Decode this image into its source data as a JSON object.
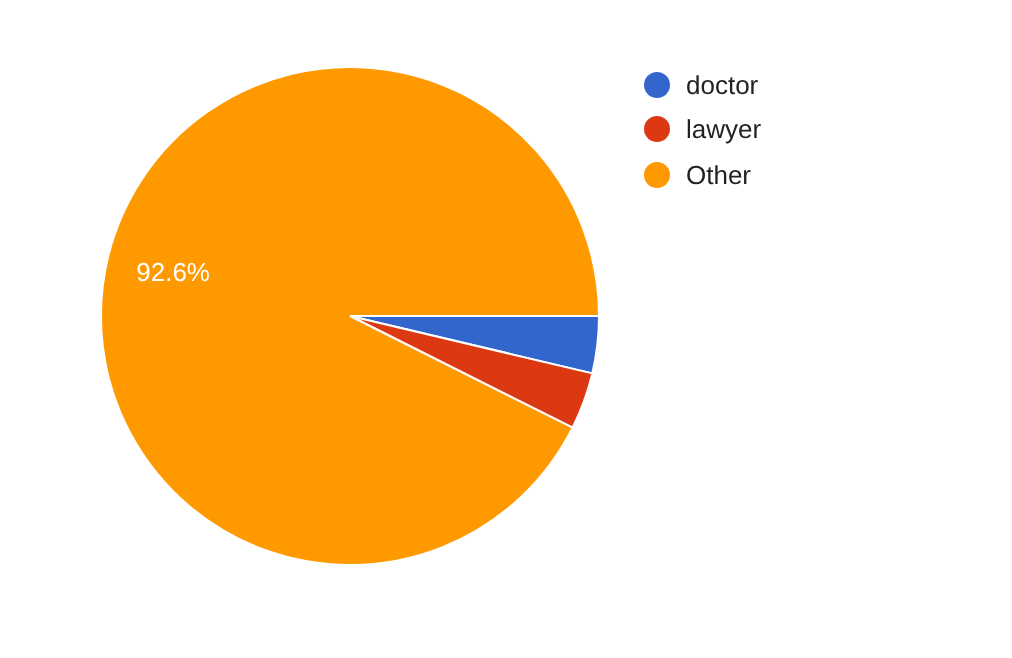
{
  "chart_data": {
    "type": "pie",
    "categories": [
      "doctor",
      "lawyer",
      "Other"
    ],
    "values": [
      3.7,
      3.7,
      92.6
    ],
    "colors": [
      "#3366cc",
      "#dc3912",
      "#ff9900"
    ],
    "value_labels": [
      null,
      null,
      "92.6%"
    ],
    "legend": "top right"
  }
}
